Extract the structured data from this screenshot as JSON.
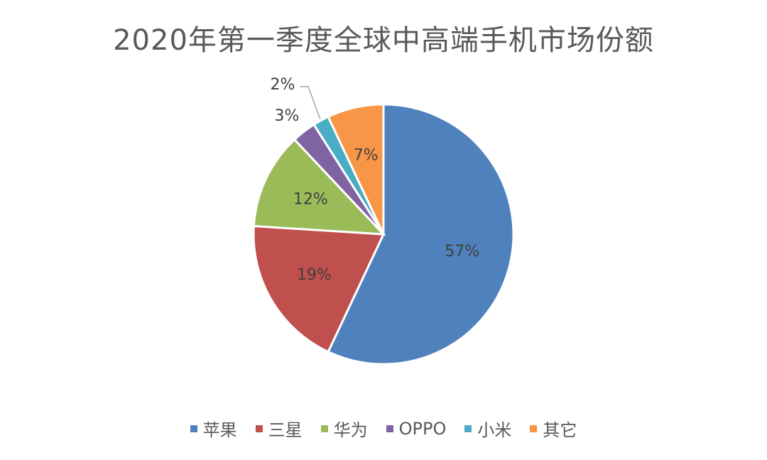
{
  "chart_data": {
    "type": "pie",
    "title": "2020年第一季度全球中高端手机市场份额",
    "categories": [
      "苹果",
      "三星",
      "华为",
      "OPPO",
      "小米",
      "其它"
    ],
    "values": [
      57,
      19,
      12,
      3,
      2,
      7
    ],
    "labels": [
      "57%",
      "19%",
      "12%",
      "3%",
      "2%",
      "7%"
    ],
    "colors": [
      "#4F81BD",
      "#C0504D",
      "#9BBB59",
      "#8064A2",
      "#4BACC6",
      "#F79646"
    ],
    "start_angle": "12 o'clock, clockwise",
    "legend_position": "bottom"
  }
}
